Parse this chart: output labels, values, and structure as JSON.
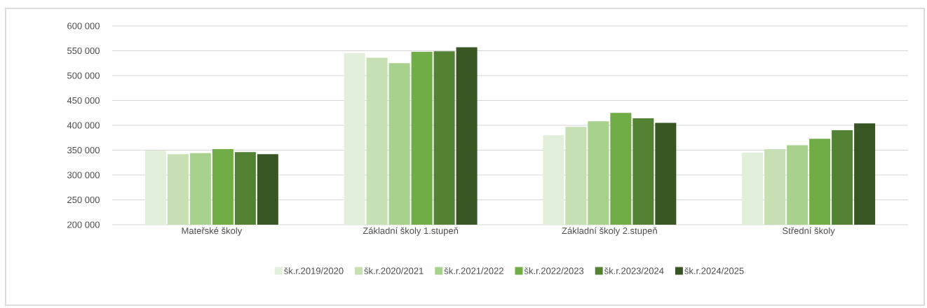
{
  "chart_data": {
    "type": "bar",
    "categories": [
      "Mateřské školy",
      "Základní školy 1.stupeň",
      "Základní školy 2.stupeň",
      "Střední školy"
    ],
    "series": [
      {
        "name": "šk.r.2019/2020",
        "color": "#e2efda",
        "values": [
          349000,
          545000,
          380000,
          345000
        ]
      },
      {
        "name": "šk.r.2020/2021",
        "color": "#c6e0b4",
        "values": [
          342000,
          536000,
          397000,
          352000
        ]
      },
      {
        "name": "šk.r.2021/2022",
        "color": "#a9d18e",
        "values": [
          344000,
          525000,
          408000,
          360000
        ]
      },
      {
        "name": "šk.r.2022/2023",
        "color": "#70ad47",
        "values": [
          352000,
          548000,
          425000,
          373000
        ]
      },
      {
        "name": "šk.r.2023/2024",
        "color": "#548235",
        "values": [
          346000,
          549000,
          414000,
          390000
        ]
      },
      {
        "name": "šk.r.2024/2025",
        "color": "#375623",
        "values": [
          342000,
          557000,
          405000,
          404000
        ]
      }
    ],
    "ylim": [
      200000,
      600000
    ],
    "yticks": [
      {
        "value": 200000,
        "label": "200 000"
      },
      {
        "value": 250000,
        "label": "250 000"
      },
      {
        "value": 300000,
        "label": "300 000"
      },
      {
        "value": 350000,
        "label": "350 000"
      },
      {
        "value": 400000,
        "label": "400 000"
      },
      {
        "value": 450000,
        "label": "450 000"
      },
      {
        "value": 500000,
        "label": "500 000"
      },
      {
        "value": 550000,
        "label": "550 000"
      },
      {
        "value": 600000,
        "label": "600 000"
      }
    ],
    "grid": "y",
    "legend": "bottom"
  }
}
